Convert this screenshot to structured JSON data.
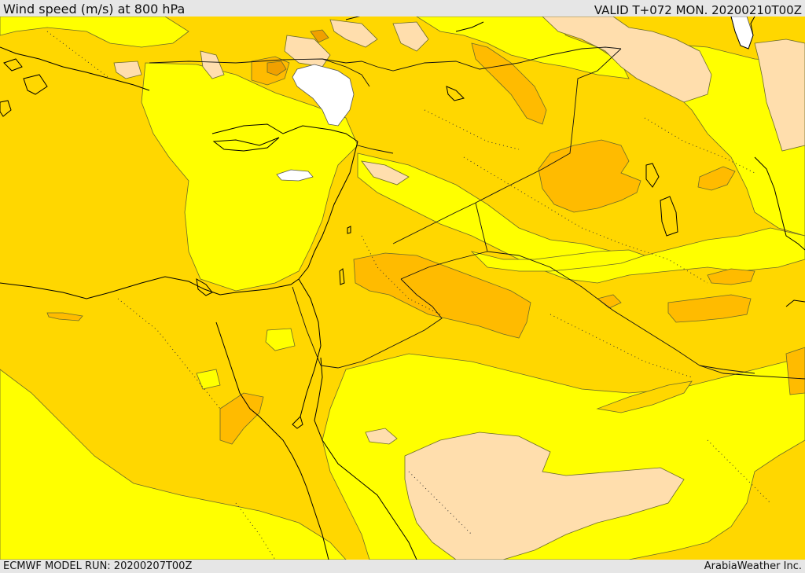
{
  "header": {
    "title": "Wind speed (m/s) at 800 hPa",
    "valid_time": "VALID T+072 MON. 20200210T00Z"
  },
  "footer": {
    "model_run": "ECMWF MODEL RUN: 20200207T00Z",
    "credit": "ArabiaWeather Inc."
  },
  "colors": {
    "calm": "#ffffff",
    "light": "#ffdead",
    "moderate": "#ffff00",
    "fresh": "#ffd700",
    "strong": "#ffbb00",
    "very_strong": "#f0a000",
    "coastline": "#000000",
    "border": "#000000",
    "contour": "#555555"
  }
}
